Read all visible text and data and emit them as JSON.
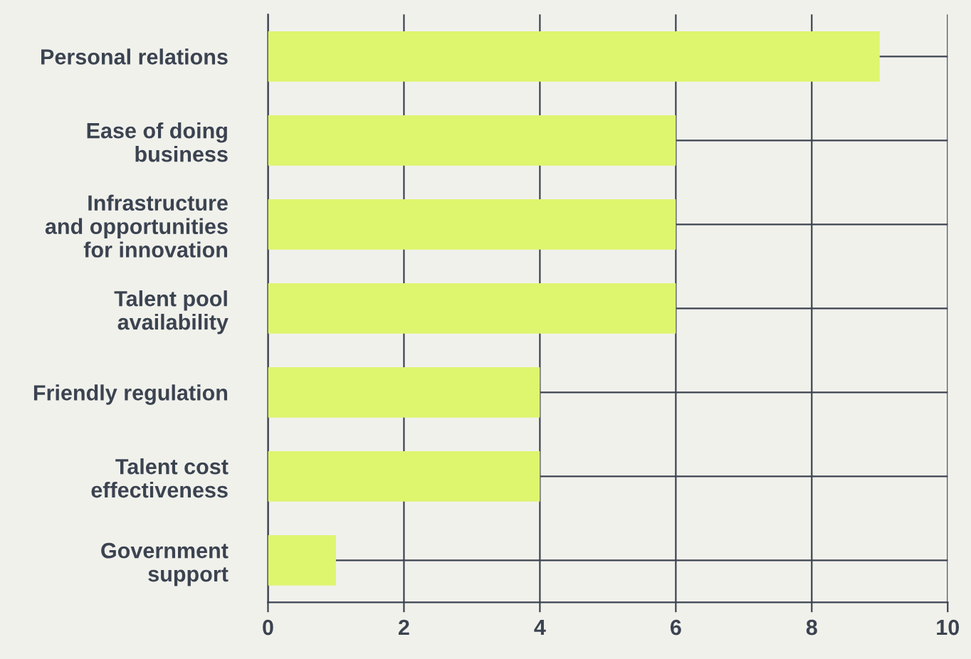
{
  "chart_data": {
    "type": "bar",
    "orientation": "horizontal",
    "categories": [
      "Personal relations",
      "Ease of doing\nbusiness",
      "Infrastructure\nand opportunities\nfor innovation",
      "Talent pool\navailability",
      "Friendly regulation",
      "Talent cost\neffectiveness",
      "Government\nsupport"
    ],
    "values": [
      9,
      6,
      6,
      6,
      4,
      4,
      1
    ],
    "color": "#def56e",
    "xlim": [
      0,
      10
    ],
    "xticks": [
      0,
      2,
      4,
      6,
      8,
      10
    ],
    "grid": true
  }
}
